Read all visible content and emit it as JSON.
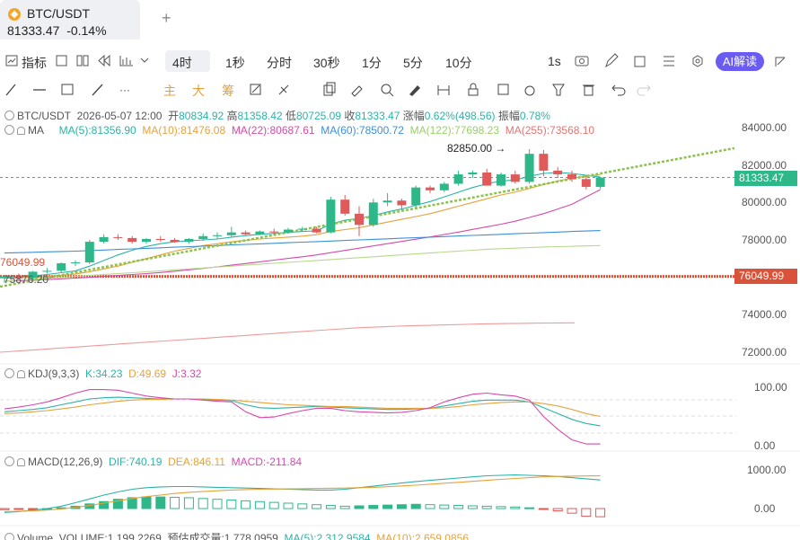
{
  "tab": {
    "title": "BTC/USDT",
    "price": "81333.47",
    "change": "-0.14%",
    "add": "+"
  },
  "toolbar": {
    "indicator": "指标",
    "timeframes": [
      "4时",
      "1秒",
      "分时",
      "30秒",
      "1分",
      "5分",
      "10分"
    ],
    "active_timeframe": "4时",
    "right_interval": "1s",
    "ai_label": "AI解读"
  },
  "drawing_tools": {
    "main": "主",
    "big": "大",
    "chips": "筹"
  },
  "ohlc": {
    "symbol": "BTC/USDT",
    "datetime": "2026-05-07 12:00",
    "open_label": "开",
    "open": "80834.92",
    "high_label": "高",
    "high": "81358.42",
    "low_label": "低",
    "low": "80725.09",
    "close_label": "收",
    "close": "81333.47",
    "change_label": "涨幅",
    "change": "0.62%(498.56)",
    "amp_label": "振幅",
    "amp": "0.78%"
  },
  "ma_legend": {
    "name": "MA",
    "ma5": "MA(5):81356.90",
    "ma10": "MA(10):81476.08",
    "ma22": "MA(22):80687.61",
    "ma60": "MA(60):78500.72",
    "ma122": "MA(122):77698.23",
    "ma255": "MA(255):73568.10"
  },
  "price_tags": {
    "current": "81333.47",
    "horizontal_line": "76049.99",
    "left_line_label": "76049.99",
    "trend_anchor": "75876.20",
    "high_annotation": "82850.00 →"
  },
  "kdj_legend": {
    "name": "KDJ(9,3,3)",
    "k": "K:34.23",
    "d": "D:49.69",
    "j": "J:3.32"
  },
  "macd_legend": {
    "name": "MACD(12,26,9)",
    "dif": "DIF:740.19",
    "dea": "DEA:846.11",
    "macd": "MACD:-211.84"
  },
  "volume_legend": {
    "name": "Volume",
    "volume": "VOLUME:1,199.2269",
    "est": "预估成交量:1,778.0959",
    "ma5": "MA(5):2,312.9584",
    "ma10": "MA(10):2,659.0856"
  },
  "colors": {
    "up": "#2eb88a",
    "down": "#e05a5a",
    "accent": "#6a5cf2",
    "trend": "#8bc34a"
  },
  "chart_data": [
    {
      "type": "candlestick",
      "panel": "price",
      "ylim": [
        71000,
        85000
      ],
      "yticks": [
        "84000.00",
        "82000.00",
        "80000.00",
        "78000.00",
        "76000.00",
        "74000.00",
        "72000.00"
      ],
      "ytick_values": [
        84000,
        82000,
        80000,
        78000,
        76000,
        74000,
        72000
      ],
      "candles": [
        {
          "o": 75950,
          "h": 76100,
          "l": 75700,
          "c": 76050
        },
        {
          "o": 76050,
          "h": 76200,
          "l": 75900,
          "c": 75950
        },
        {
          "o": 75950,
          "h": 76350,
          "l": 75850,
          "c": 76300
        },
        {
          "o": 76300,
          "h": 76500,
          "l": 76200,
          "c": 76350
        },
        {
          "o": 76350,
          "h": 76800,
          "l": 76250,
          "c": 76750
        },
        {
          "o": 76750,
          "h": 76900,
          "l": 76600,
          "c": 76800
        },
        {
          "o": 76800,
          "h": 78000,
          "l": 76700,
          "c": 77900
        },
        {
          "o": 77900,
          "h": 78300,
          "l": 77800,
          "c": 78150
        },
        {
          "o": 78150,
          "h": 78300,
          "l": 78000,
          "c": 78100
        },
        {
          "o": 78100,
          "h": 78200,
          "l": 77800,
          "c": 77900
        },
        {
          "o": 77900,
          "h": 78100,
          "l": 77800,
          "c": 78050
        },
        {
          "o": 78050,
          "h": 78200,
          "l": 77900,
          "c": 78000
        },
        {
          "o": 78000,
          "h": 78100,
          "l": 77850,
          "c": 77900
        },
        {
          "o": 77900,
          "h": 78100,
          "l": 77800,
          "c": 78050
        },
        {
          "o": 78050,
          "h": 78350,
          "l": 77950,
          "c": 78200
        },
        {
          "o": 78200,
          "h": 78400,
          "l": 78050,
          "c": 78250
        },
        {
          "o": 78250,
          "h": 78700,
          "l": 78150,
          "c": 78400
        },
        {
          "o": 78400,
          "h": 78500,
          "l": 78250,
          "c": 78300
        },
        {
          "o": 78300,
          "h": 78500,
          "l": 78250,
          "c": 78450
        },
        {
          "o": 78450,
          "h": 78600,
          "l": 78300,
          "c": 78400
        },
        {
          "o": 78400,
          "h": 78650,
          "l": 78350,
          "c": 78550
        },
        {
          "o": 78550,
          "h": 78700,
          "l": 78450,
          "c": 78600
        },
        {
          "o": 78600,
          "h": 78700,
          "l": 78350,
          "c": 78400
        },
        {
          "o": 78400,
          "h": 80300,
          "l": 78350,
          "c": 80150
        },
        {
          "o": 80150,
          "h": 80400,
          "l": 79300,
          "c": 79400
        },
        {
          "o": 79400,
          "h": 79800,
          "l": 78200,
          "c": 78800
        },
        {
          "o": 78800,
          "h": 80200,
          "l": 78700,
          "c": 80000
        },
        {
          "o": 80000,
          "h": 80500,
          "l": 79800,
          "c": 80100
        },
        {
          "o": 80100,
          "h": 80200,
          "l": 79600,
          "c": 79850
        },
        {
          "o": 79850,
          "h": 80900,
          "l": 79700,
          "c": 80800
        },
        {
          "o": 80800,
          "h": 80900,
          "l": 80500,
          "c": 80650
        },
        {
          "o": 80650,
          "h": 81100,
          "l": 80550,
          "c": 81000
        },
        {
          "o": 81000,
          "h": 81700,
          "l": 80900,
          "c": 81500
        },
        {
          "o": 81500,
          "h": 81700,
          "l": 81300,
          "c": 81600
        },
        {
          "o": 81600,
          "h": 81800,
          "l": 80900,
          "c": 80900
        },
        {
          "o": 80900,
          "h": 81600,
          "l": 80850,
          "c": 81500
        },
        {
          "o": 81500,
          "h": 81700,
          "l": 81000,
          "c": 81100
        },
        {
          "o": 81100,
          "h": 82850,
          "l": 81000,
          "c": 82600
        },
        {
          "o": 82600,
          "h": 82800,
          "l": 81400,
          "c": 81700
        },
        {
          "o": 81700,
          "h": 81900,
          "l": 81300,
          "c": 81500
        },
        {
          "o": 81500,
          "h": 81700,
          "l": 81100,
          "c": 81250
        },
        {
          "o": 81250,
          "h": 81400,
          "l": 80700,
          "c": 80834
        },
        {
          "o": 80834,
          "h": 81358,
          "l": 80725,
          "c": 81333
        }
      ],
      "ma_lines": {
        "ma5": [
          76000,
          76030,
          76080,
          76150,
          76250,
          76350,
          76600,
          76900,
          77200,
          77450,
          77650,
          77800,
          77900,
          77950,
          78000,
          78050,
          78150,
          78230,
          78300,
          78350,
          78400,
          78450,
          78480,
          78850,
          79050,
          79150,
          79300,
          79500,
          79650,
          79850,
          80050,
          80300,
          80550,
          80800,
          81000,
          81150,
          81200,
          81400,
          81550,
          81600,
          81550,
          81450,
          81357
        ],
        "ma10": [
          75950,
          75980,
          76000,
          76050,
          76100,
          76180,
          76300,
          76450,
          76600,
          76800,
          77000,
          77200,
          77400,
          77550,
          77700,
          77800,
          77900,
          77980,
          78050,
          78100,
          78150,
          78200,
          78280,
          78450,
          78550,
          78650,
          78800,
          78950,
          79100,
          79250,
          79400,
          79600,
          79800,
          80000,
          80200,
          80400,
          80550,
          80750,
          80950,
          81150,
          81300,
          81400,
          81476
        ],
        "ma22": [
          75800,
          75820,
          75850,
          75880,
          75920,
          75960,
          76000,
          76050,
          76100,
          76150,
          76200,
          76260,
          76330,
          76400,
          76480,
          76560,
          76650,
          76740,
          76830,
          76920,
          77010,
          77100,
          77200,
          77320,
          77440,
          77560,
          77680,
          77800,
          77920,
          78040,
          78160,
          78290,
          78420,
          78560,
          78700,
          78840,
          79000,
          79200,
          79400,
          79650,
          79900,
          80300,
          80688
        ],
        "ma60": [
          77300,
          77320,
          77340,
          77360,
          77380,
          77400,
          77430,
          77460,
          77490,
          77520,
          77550,
          77580,
          77610,
          77640,
          77670,
          77700,
          77730,
          77760,
          77790,
          77820,
          77850,
          77880,
          77910,
          77940,
          77970,
          78000,
          78030,
          78060,
          78090,
          78120,
          78150,
          78180,
          78210,
          78240,
          78270,
          78300,
          78330,
          78360,
          78390,
          78420,
          78450,
          78475,
          78501
        ],
        "ma122": [
          75800,
          75850,
          75900,
          75950,
          76000,
          76050,
          76100,
          76150,
          76200,
          76250,
          76300,
          76350,
          76400,
          76450,
          76500,
          76550,
          76600,
          76650,
          76700,
          76750,
          76800,
          76850,
          76900,
          76950,
          77000,
          77050,
          77100,
          77150,
          77200,
          77250,
          77300,
          77350,
          77400,
          77450,
          77500,
          77530,
          77560,
          77590,
          77620,
          77640,
          77660,
          77680,
          77698
        ],
        "ma255": [
          72000,
          72050,
          72100,
          72150,
          72200,
          72250,
          72300,
          72350,
          72400,
          72450,
          72500,
          72550,
          72600,
          72650,
          72700,
          72750,
          72800,
          72850,
          72900,
          72950,
          73000,
          73050,
          73100,
          73150,
          73200,
          73250,
          73300,
          73330,
          73360,
          73390,
          73410,
          73430,
          73450,
          73470,
          73490,
          73505,
          73520,
          73530,
          73540,
          73550,
          73558,
          73564,
          73568
        ]
      },
      "trendline": {
        "from": 75500,
        "to": 82900
      },
      "horizontal_line": 76049.99,
      "current_price": 81333.47
    },
    {
      "type": "line",
      "panel": "kdj",
      "ylim": [
        -10,
        110
      ],
      "yticks": [
        "100.00",
        "0.00"
      ],
      "ytick_values": [
        100,
        0
      ],
      "series": [
        {
          "name": "K",
          "values": [
            58,
            60,
            62,
            65,
            70,
            75,
            80,
            82,
            83,
            82,
            81,
            80,
            80,
            80,
            79,
            78,
            77,
            70,
            65,
            64,
            65,
            66,
            67,
            66,
            65,
            64,
            63,
            62,
            62,
            63,
            64,
            68,
            72,
            76,
            78,
            78,
            78,
            75,
            65,
            55,
            45,
            38,
            34
          ]
        },
        {
          "name": "D",
          "values": [
            55,
            56,
            58,
            60,
            63,
            66,
            70,
            73,
            76,
            78,
            79,
            79,
            80,
            80,
            80,
            79,
            78,
            76,
            74,
            72,
            70,
            69,
            68,
            67,
            67,
            66,
            65,
            64,
            64,
            64,
            64,
            65,
            67,
            70,
            72,
            74,
            75,
            75,
            72,
            68,
            62,
            55,
            50
          ]
        },
        {
          "name": "J",
          "values": [
            63,
            66,
            70,
            75,
            82,
            90,
            96,
            96,
            95,
            90,
            85,
            82,
            80,
            80,
            78,
            76,
            75,
            58,
            48,
            49,
            55,
            60,
            64,
            64,
            60,
            58,
            57,
            56,
            57,
            60,
            65,
            75,
            82,
            88,
            90,
            87,
            85,
            78,
            50,
            28,
            10,
            3,
            3
          ]
        }
      ]
    },
    {
      "type": "bar",
      "panel": "macd",
      "ylim": [
        -400,
        1400
      ],
      "yticks": [
        "1000.00",
        "0.00"
      ],
      "ytick_values": [
        1000,
        0
      ],
      "histogram": [
        -30,
        -20,
        -10,
        0,
        20,
        60,
        120,
        180,
        240,
        280,
        300,
        300,
        290,
        280,
        260,
        240,
        220,
        200,
        180,
        160,
        140,
        120,
        100,
        80,
        60,
        70,
        80,
        90,
        100,
        110,
        100,
        90,
        80,
        70,
        60,
        50,
        40,
        20,
        -20,
        -60,
        -120,
        -200,
        -212
      ],
      "series": [
        {
          "name": "DIF",
          "values": [
            -100,
            -80,
            -40,
            0,
            60,
            150,
            250,
            350,
            430,
            500,
            540,
            560,
            570,
            570,
            560,
            550,
            540,
            530,
            520,
            510,
            500,
            490,
            480,
            480,
            500,
            540,
            580,
            620,
            660,
            700,
            730,
            760,
            790,
            820,
            850,
            860,
            870,
            860,
            850,
            830,
            800,
            770,
            740
          ]
        },
        {
          "name": "DEA",
          "values": [
            -80,
            -70,
            -60,
            -40,
            -10,
            30,
            80,
            140,
            200,
            260,
            310,
            350,
            390,
            420,
            440,
            460,
            480,
            490,
            500,
            505,
            510,
            515,
            520,
            525,
            530,
            540,
            550,
            565,
            585,
            605,
            630,
            655,
            680,
            705,
            730,
            755,
            780,
            800,
            820,
            830,
            840,
            845,
            846
          ]
        }
      ]
    }
  ]
}
